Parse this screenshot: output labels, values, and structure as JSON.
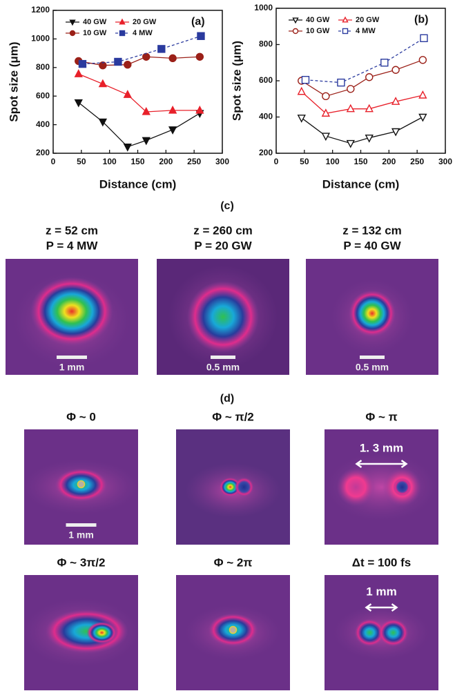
{
  "chart_data": [
    {
      "type": "line",
      "panel_label": "(a)",
      "x_label": "Distance (cm)",
      "y_label": "Spot size (μm)",
      "xlim": [
        0,
        300
      ],
      "xticks": [
        0,
        50,
        100,
        150,
        200,
        250,
        300
      ],
      "ylim": [
        200,
        1200
      ],
      "yticks": [
        200,
        400,
        600,
        800,
        1000,
        1200
      ],
      "series": [
        {
          "name": "40 GW",
          "color": "#111111",
          "marker": "triangle-down",
          "filled": true,
          "dashed": false,
          "x": [
            45,
            88,
            132,
            165,
            212,
            260
          ],
          "values": [
            555,
            420,
            245,
            290,
            365,
            480
          ]
        },
        {
          "name": "20 GW",
          "color": "#e8202a",
          "marker": "triangle-up",
          "filled": true,
          "dashed": false,
          "x": [
            45,
            88,
            132,
            165,
            212,
            260
          ],
          "values": [
            755,
            685,
            610,
            490,
            500,
            500
          ]
        },
        {
          "name": "10 GW",
          "color": "#9b2018",
          "marker": "circle",
          "filled": true,
          "dashed": false,
          "x": [
            45,
            88,
            132,
            165,
            212,
            260
          ],
          "values": [
            845,
            815,
            820,
            875,
            865,
            875
          ]
        },
        {
          "name": "4 MW",
          "color": "#2a3a9e",
          "marker": "square",
          "filled": true,
          "dashed": true,
          "x": [
            52,
            115,
            192,
            262
          ],
          "values": [
            825,
            840,
            930,
            1020
          ]
        }
      ]
    },
    {
      "type": "line",
      "panel_label": "(b)",
      "x_label": "Distance (cm)",
      "y_label": "Spot size (μm)",
      "xlim": [
        0,
        300
      ],
      "xticks": [
        0,
        50,
        100,
        150,
        200,
        250,
        300
      ],
      "ylim": [
        200,
        1000
      ],
      "yticks": [
        200,
        400,
        600,
        800,
        1000
      ],
      "series": [
        {
          "name": "40 GW",
          "color": "#111111",
          "marker": "triangle-down",
          "filled": false,
          "dashed": false,
          "x": [
            45,
            88,
            132,
            165,
            212,
            260
          ],
          "values": [
            395,
            295,
            255,
            285,
            320,
            400
          ]
        },
        {
          "name": "20 GW",
          "color": "#e8202a",
          "marker": "triangle-up",
          "filled": false,
          "dashed": false,
          "x": [
            45,
            88,
            132,
            165,
            212,
            260
          ],
          "values": [
            540,
            420,
            445,
            445,
            485,
            520
          ]
        },
        {
          "name": "10 GW",
          "color": "#9b2018",
          "marker": "circle",
          "filled": false,
          "dashed": false,
          "x": [
            45,
            88,
            132,
            165,
            212,
            260
          ],
          "values": [
            600,
            515,
            555,
            620,
            660,
            715
          ]
        },
        {
          "name": "4 MW",
          "color": "#2a3a9e",
          "marker": "square",
          "filled": false,
          "dashed": true,
          "x": [
            52,
            115,
            192,
            262
          ],
          "values": [
            605,
            590,
            700,
            835
          ]
        }
      ]
    }
  ],
  "panel_c": {
    "label": "(c)",
    "images": [
      {
        "caption": [
          "z = 52 cm",
          "P = 4 MW"
        ],
        "scale_bar": "1 mm"
      },
      {
        "caption": [
          "z = 260 cm",
          "P = 20 GW"
        ],
        "scale_bar": "0.5 mm"
      },
      {
        "caption": [
          "z = 132 cm",
          "P = 40 GW"
        ],
        "scale_bar": "0.5 mm"
      }
    ]
  },
  "panel_d": {
    "label": "(d)",
    "images": [
      {
        "caption": "Φ ~ 0",
        "scale_bar": "1 mm"
      },
      {
        "caption": "Φ ~ π/2"
      },
      {
        "caption": "Φ ~ π",
        "scale_bar": "1. 3 mm"
      },
      {
        "caption": "Φ ~ 3π/2"
      },
      {
        "caption": "Φ ~ 2π"
      },
      {
        "caption": "Δt = 100 fs",
        "scale_bar": "1 mm"
      }
    ]
  }
}
